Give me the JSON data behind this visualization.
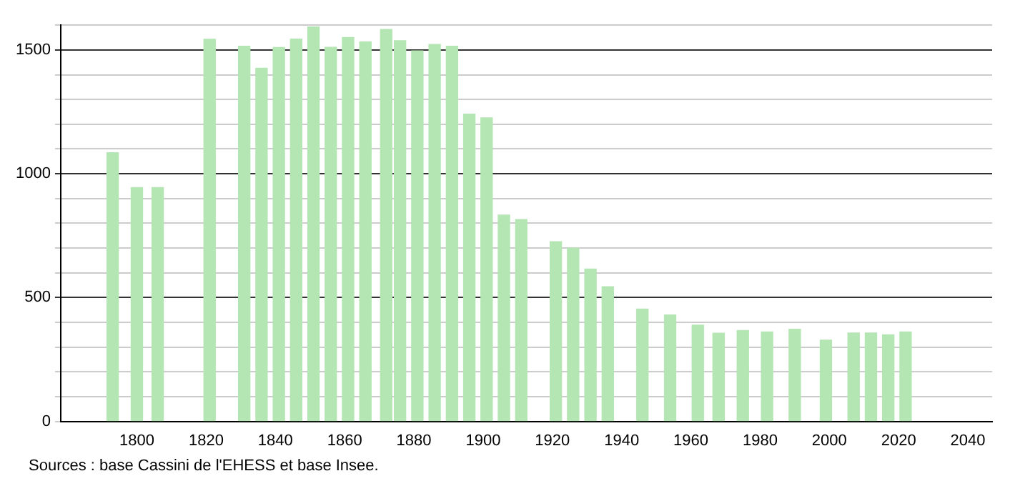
{
  "chart_data": {
    "type": "bar",
    "x": [
      1793,
      1800,
      1806,
      1821,
      1831,
      1836,
      1841,
      1846,
      1851,
      1856,
      1861,
      1866,
      1872,
      1876,
      1881,
      1886,
      1891,
      1896,
      1901,
      1906,
      1911,
      1921,
      1926,
      1931,
      1936,
      1946,
      1954,
      1962,
      1968,
      1975,
      1982,
      1990,
      1999,
      2007,
      2012,
      2017,
      2022
    ],
    "values": [
      1085,
      944,
      944,
      1543,
      1515,
      1426,
      1510,
      1544,
      1593,
      1511,
      1550,
      1532,
      1583,
      1537,
      1496,
      1522,
      1515,
      1241,
      1226,
      833,
      815,
      726,
      700,
      615,
      544,
      454,
      430,
      389,
      356,
      367,
      361,
      372,
      328,
      357,
      357,
      350,
      361
    ],
    "color": "#b3e6b3",
    "xlim": [
      1778,
      2047
    ],
    "xticks": [
      1800,
      1820,
      1840,
      1860,
      1880,
      1900,
      1920,
      1940,
      1960,
      1980,
      2000,
      2020,
      2040
    ],
    "ylim": [
      0,
      1600
    ],
    "yticks": [
      0,
      {
        "value": 100,
        "label": null
      },
      {
        "value": 200,
        "label": null
      },
      {
        "value": 300,
        "label": null
      },
      {
        "value": 400,
        "label": null
      },
      500,
      {
        "value": 600,
        "label": null
      },
      {
        "value": 700,
        "label": null
      },
      {
        "value": 800,
        "label": null
      },
      {
        "value": 900,
        "label": null
      },
      1000,
      {
        "value": 1100,
        "label": null
      },
      {
        "value": 1200,
        "label": null
      },
      {
        "value": 1300,
        "label": null
      },
      {
        "value": 1400,
        "label": null
      },
      1500,
      {
        "value": 1600,
        "label": null
      }
    ],
    "grid": "y",
    "annotations": [
      "Sources : base Cassini de l'EHESS et base Insee."
    ]
  }
}
